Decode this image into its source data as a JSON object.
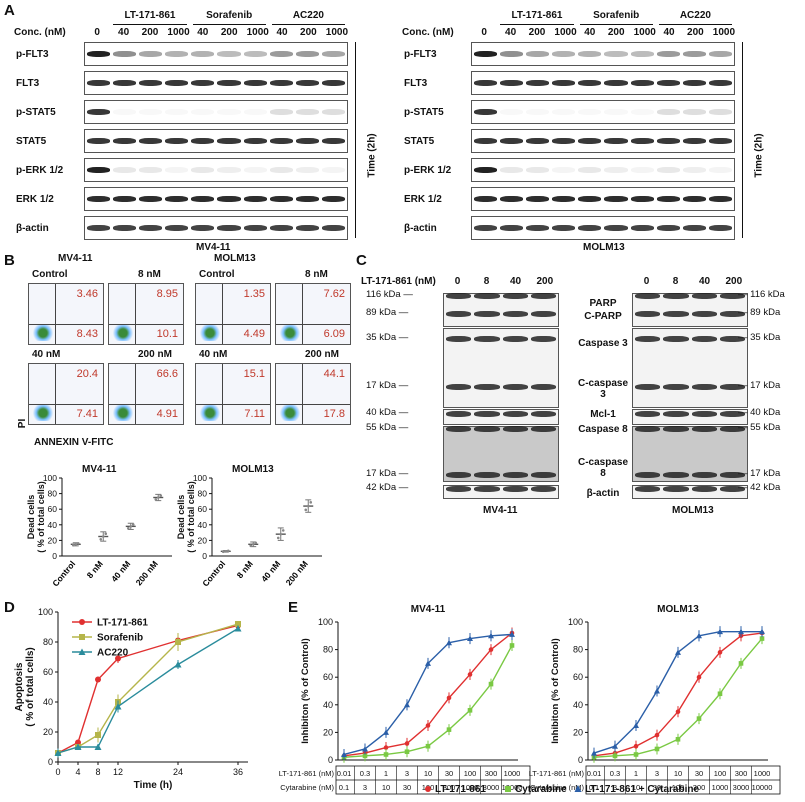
{
  "panel_a": {
    "label": "A",
    "conc_label": "Conc. (nM)",
    "groups": [
      "LT-171-861",
      "Sorafenib",
      "AC220"
    ],
    "doses": [
      "0",
      "40",
      "200",
      "1000",
      "40",
      "200",
      "1000",
      "40",
      "200",
      "1000"
    ],
    "rows": [
      "p-FLT3",
      "FLT3",
      "p-STAT5",
      "STAT5",
      "p-ERK 1/2",
      "ERK 1/2",
      "β-actin"
    ],
    "time_label": "Time (2h)",
    "left_cell": "MV4-11",
    "right_cell": "MOLM13"
  },
  "panel_b": {
    "label": "B",
    "mv_title": "MV4-11",
    "molm_title": "MOLM13",
    "facs_labels": [
      "Control",
      "8 nM",
      "40 nM",
      "200 nM"
    ],
    "mv_values": [
      [
        "3.46",
        "8.43"
      ],
      [
        "8.95",
        "10.1"
      ],
      [
        "20.4",
        "7.41"
      ],
      [
        "66.6",
        "4.91"
      ]
    ],
    "molm_values": [
      [
        "1.35",
        "4.49"
      ],
      [
        "7.62",
        "6.09"
      ],
      [
        "15.1",
        "7.11"
      ],
      [
        "44.1",
        "17.8"
      ]
    ],
    "axis_y": "PI",
    "axis_x": "ANNEXIN V-FITC",
    "ylabel_line1": "Dead cells",
    "ylabel_line2": "( % of total cells)",
    "yticks": [
      "0",
      "20",
      "40",
      "60",
      "80",
      "100"
    ],
    "xcats": [
      "Control",
      "8 nM",
      "40 nM",
      "200 nM"
    ]
  },
  "panel_c": {
    "label": "C",
    "conc_label": "LT-171-861 (nM)",
    "doses": [
      "0",
      "8",
      "40",
      "200"
    ],
    "left_kda": [
      "116 kDa",
      "89 kDa",
      "35 kDa",
      "17 kDa",
      "40 kDa",
      "55 kDa",
      "17 kDa",
      "42 kDa"
    ],
    "right_kda": [
      "116 kDa",
      "89 kDa",
      "35 kDa",
      "17 kDa",
      "40 kDa",
      "55 kDa",
      "17 kDa",
      "42 kDa"
    ],
    "proteins": [
      "PARP",
      "C-PARP",
      "Caspase 3",
      "C-caspase 3",
      "Mcl-1",
      "Caspase 8",
      "C-caspase 8",
      "β-actin"
    ],
    "left_cell": "MV4-11",
    "right_cell": "MOLM13"
  },
  "panel_d": {
    "label": "D",
    "ylabel_line1": "Apoptosis",
    "ylabel_line2": "( % of total cells)",
    "xlabel": "Time (h)",
    "legend": [
      "LT-171-861",
      "Sorafenib",
      "AC220"
    ]
  },
  "panel_e": {
    "label": "E",
    "left_title": "MV4-11",
    "right_title": "MOLM13",
    "ylabel": "Inhibiton (% of Control)",
    "row1_label": "LT-171-861 (nM)",
    "row2_label": "Cytarabine (nM)",
    "row1": [
      "0.01",
      "0.3",
      "1",
      "3",
      "10",
      "30",
      "100",
      "300",
      "1000"
    ],
    "row2": [
      "0.1",
      "3",
      "10",
      "30",
      "100",
      "300",
      "1000",
      "3000",
      "10000"
    ],
    "legend": [
      "LT-171-861",
      "Cytarabine",
      "LT-171-861 + Cytarabine"
    ]
  },
  "colors": {
    "red": "#e03030",
    "green": "#7ac943",
    "blue": "#2b5fa8",
    "olive": "#b5b54a",
    "teal": "#2a8c9c"
  },
  "chart_data": [
    {
      "type": "scatter",
      "id": "b-mv411",
      "title": "MV4-11",
      "categories": [
        "Control",
        "8 nM",
        "40 nM",
        "200 nM"
      ],
      "values": [
        15,
        25,
        38,
        75
      ],
      "errors": [
        2,
        6,
        4,
        4
      ],
      "ylabel": "Dead cells ( % of total cells)",
      "ylim": [
        0,
        100
      ]
    },
    {
      "type": "scatter",
      "id": "b-molm13",
      "title": "MOLM13",
      "categories": [
        "Control",
        "8 nM",
        "40 nM",
        "200 nM"
      ],
      "values": [
        6,
        15,
        28,
        64
      ],
      "errors": [
        1,
        3,
        8,
        8
      ],
      "ylabel": "Dead cells ( % of total cells)",
      "ylim": [
        0,
        100
      ]
    },
    {
      "type": "line",
      "id": "d-apoptosis",
      "x": [
        0,
        4,
        8,
        12,
        24,
        36
      ],
      "series": [
        {
          "name": "LT-171-861",
          "values": [
            6,
            13,
            55,
            69,
            81,
            91
          ],
          "errors": [
            3,
            2,
            2,
            3,
            3,
            2
          ]
        },
        {
          "name": "Sorafenib",
          "values": [
            6,
            10,
            18,
            40,
            80,
            92
          ],
          "errors": [
            3,
            2,
            5,
            5,
            6,
            2
          ]
        },
        {
          "name": "AC220",
          "values": [
            6,
            10,
            10,
            37,
            65,
            89
          ],
          "errors": [
            3,
            2,
            2,
            4,
            3,
            2
          ]
        }
      ],
      "xlabel": "Time (h)",
      "ylabel": "Apoptosis ( % of total cells)",
      "ylim": [
        0,
        100
      ]
    },
    {
      "type": "line",
      "id": "e-mv411",
      "title": "MV4-11",
      "x": [
        1,
        2,
        3,
        4,
        5,
        6,
        7,
        8,
        9
      ],
      "series": [
        {
          "name": "LT-171-861",
          "values": [
            3,
            5,
            9,
            12,
            25,
            45,
            62,
            80,
            92
          ]
        },
        {
          "name": "Cytarabine",
          "values": [
            2,
            3,
            4,
            6,
            10,
            22,
            36,
            55,
            83
          ]
        },
        {
          "name": "LT-171-861 + Cytarabine",
          "values": [
            4,
            8,
            20,
            40,
            70,
            85,
            88,
            90,
            91
          ]
        }
      ],
      "ylabel": "Inhibiton (% of Control)",
      "ylim": [
        0,
        100
      ]
    },
    {
      "type": "line",
      "id": "e-molm13",
      "title": "MOLM13",
      "x": [
        1,
        2,
        3,
        4,
        5,
        6,
        7,
        8,
        9
      ],
      "series": [
        {
          "name": "LT-171-861",
          "values": [
            3,
            5,
            10,
            18,
            35,
            60,
            78,
            90,
            92
          ]
        },
        {
          "name": "Cytarabine",
          "values": [
            2,
            3,
            4,
            8,
            15,
            30,
            48,
            70,
            88
          ]
        },
        {
          "name": "LT-171-861 + Cytarabine",
          "values": [
            5,
            10,
            25,
            50,
            78,
            90,
            93,
            93,
            93
          ]
        }
      ],
      "ylabel": "Inhibiton (% of Control)",
      "ylim": [
        0,
        100
      ]
    }
  ]
}
